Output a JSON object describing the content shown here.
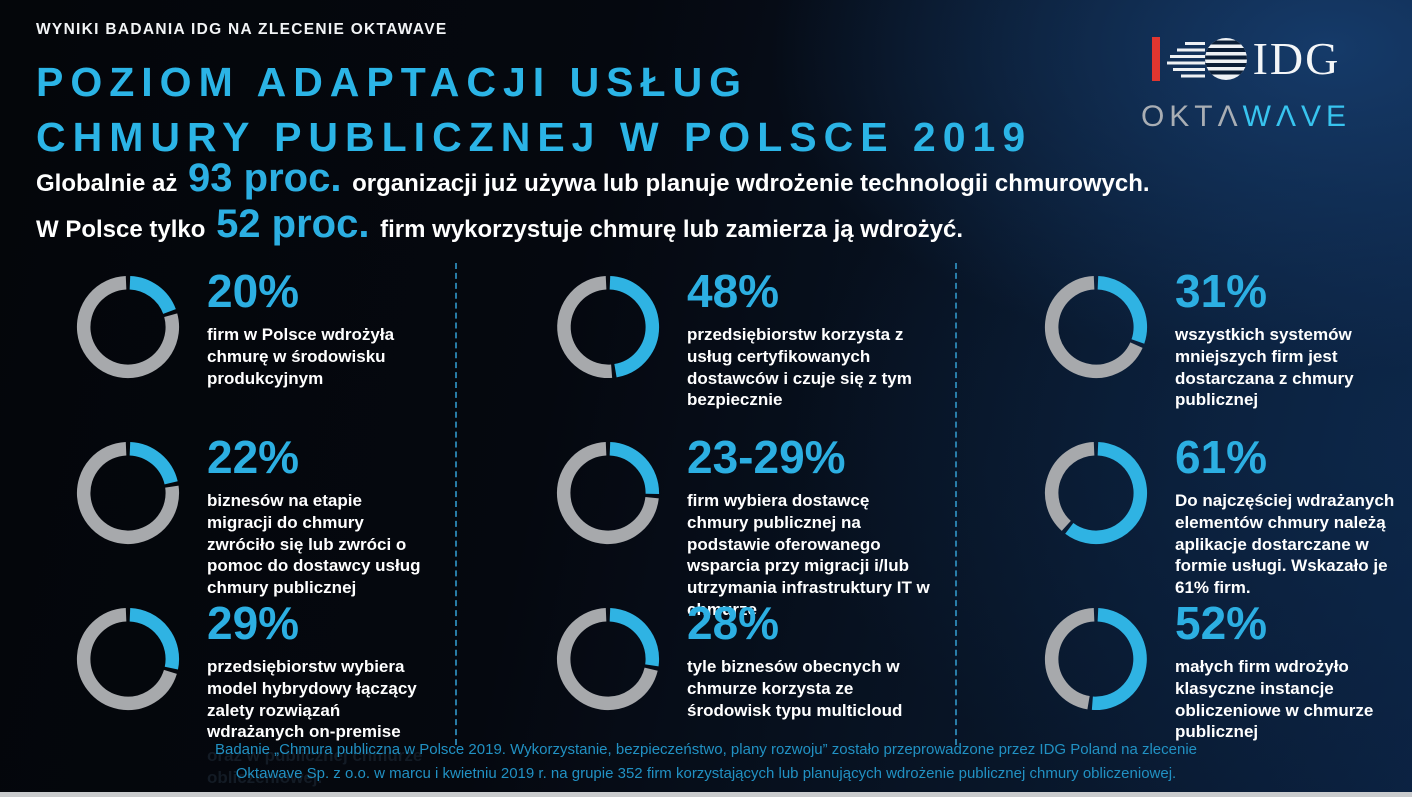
{
  "header": {
    "eyebrow": "WYNIKI BADANIA IDG NA ZLECENIE OKTAWAVE",
    "title_line1": "POZIOM ADAPTACJI USŁUG",
    "title_line2": "CHMURY PUBLICZNEJ W POLSCE 2019"
  },
  "logos": {
    "idg": "IDG",
    "oktawave_part1": "OKTΛ",
    "oktawave_part2": "WΛVE"
  },
  "intro": [
    {
      "prefix": "Globalnie aż ",
      "highlight": "93 proc.",
      "suffix": " organizacji już używa lub planuje wdrożenie technologii chmurowych."
    },
    {
      "prefix": "W Polsce tylko ",
      "highlight": "52 proc.",
      "suffix": " firm wykorzystuje chmurę lub zamierza ją wdrożyć."
    }
  ],
  "chart_data": [
    {
      "type": "pie",
      "label": "20%",
      "value_percent": 20,
      "remainder_percent": 80,
      "description": "firm w Polsce wdrożyła chmurę w środowisku produkcyjnym"
    },
    {
      "type": "pie",
      "label": "48%",
      "value_percent": 48,
      "remainder_percent": 52,
      "description": "przedsiębiorstw korzysta z usług certyfikowanych dostawców i czuje się z tym bezpiecznie"
    },
    {
      "type": "pie",
      "label": "31%",
      "value_percent": 31,
      "remainder_percent": 69,
      "description": "wszystkich systemów mniejszych firm jest dostarczana z chmury publicznej"
    },
    {
      "type": "pie",
      "label": "22%",
      "value_percent": 22,
      "remainder_percent": 78,
      "description": "biznesów na etapie migracji do chmury zwróciło się lub zwróci o pomoc do dostawcy usług chmury publicznej"
    },
    {
      "type": "pie",
      "label": "23-29%",
      "value_percent": 26,
      "remainder_percent": 74,
      "description": "firm wybiera dostawcę chmury publicznej na podstawie oferowanego wsparcia przy migracji i/lub utrzymania infrastruktury IT w chmurze"
    },
    {
      "type": "pie",
      "label": "61%",
      "value_percent": 61,
      "remainder_percent": 39,
      "description": "Do najczęściej wdrażanych elementów chmury należą aplikacje dostarczane w formie usługi. Wskazało je 61% firm."
    },
    {
      "type": "pie",
      "label": "29%",
      "value_percent": 29,
      "remainder_percent": 71,
      "description": "przedsiębiorstw wybiera model hybrydowy łączący zalety rozwiązań wdrażanych  on-premise",
      "ghost_text": "oraz w publicznej chmurze obliczeniowej."
    },
    {
      "type": "pie",
      "label": "28%",
      "value_percent": 28,
      "remainder_percent": 72,
      "description": "tyle biznesów obecnych w chmurze korzysta ze środowisk typu multicloud"
    },
    {
      "type": "pie",
      "label": "52%",
      "value_percent": 52,
      "remainder_percent": 48,
      "description": "małych firm wdrożyło klasyczne instancje obliczeniowe w chmurze publicznej"
    }
  ],
  "footer": {
    "line1": "Badanie „Chmura publiczna w Polsce 2019. Wykorzystanie, bezpieczeństwo, plany rozwoju”  zostało przeprowadzone przez IDG Poland  na zlecenie",
    "line2": "Oktawave Sp. z o.o. w marcu i kwietniu 2019 r. na grupie 352 firm korzystających lub planujących wdrożenie publicznej chmury obliczeniowej."
  },
  "colors": {
    "accent": "#2fb3e3",
    "ring_gray": "#a7a9ac",
    "title_cyan": "#2bb4e6",
    "footer_cyan": "#2191c3",
    "idg_red": "#e03630",
    "background_navy": "#0b2140",
    "bottom_bar": "#c9cbcd"
  }
}
